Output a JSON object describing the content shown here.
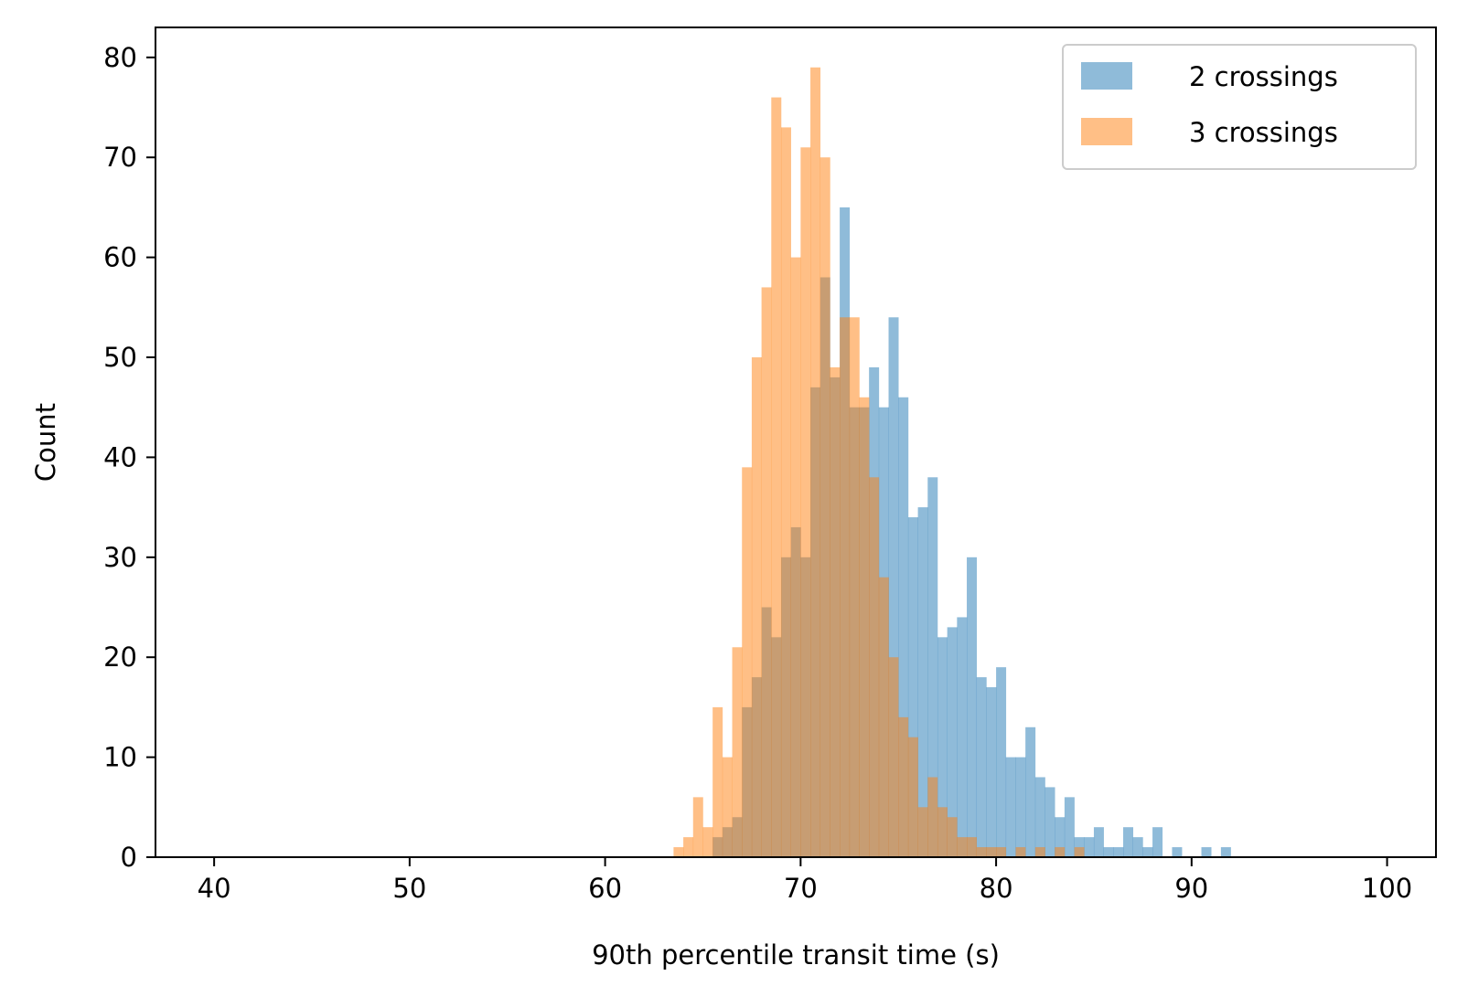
{
  "chart_data": {
    "type": "histogram",
    "xlabel": "90th percentile transit time (s)",
    "ylabel": "Count",
    "xlim": [
      37,
      102.5
    ],
    "ylim": [
      0,
      83
    ],
    "xticks": [
      40,
      50,
      60,
      70,
      80,
      90,
      100
    ],
    "yticks": [
      0,
      10,
      20,
      30,
      40,
      50,
      60,
      70,
      80
    ],
    "bin_width": 0.5,
    "legend_position": "top-right",
    "series": [
      {
        "name": "2 crossings",
        "color": "#1f77b4",
        "opacity": 0.5,
        "bins": [
          [
            65.5,
            2
          ],
          [
            66.0,
            3
          ],
          [
            66.5,
            4
          ],
          [
            67.0,
            15
          ],
          [
            67.5,
            18
          ],
          [
            68.0,
            25
          ],
          [
            68.5,
            22
          ],
          [
            69.0,
            30
          ],
          [
            69.5,
            33
          ],
          [
            70.0,
            30
          ],
          [
            70.5,
            47
          ],
          [
            71.0,
            58
          ],
          [
            71.5,
            48
          ],
          [
            72.0,
            65
          ],
          [
            72.5,
            45
          ],
          [
            73.0,
            45
          ],
          [
            73.5,
            49
          ],
          [
            74.0,
            45
          ],
          [
            74.5,
            54
          ],
          [
            75.0,
            46
          ],
          [
            75.5,
            34
          ],
          [
            76.0,
            35
          ],
          [
            76.5,
            38
          ],
          [
            77.0,
            22
          ],
          [
            77.5,
            23
          ],
          [
            78.0,
            24
          ],
          [
            78.5,
            30
          ],
          [
            79.0,
            18
          ],
          [
            79.5,
            17
          ],
          [
            80.0,
            19
          ],
          [
            80.5,
            10
          ],
          [
            81.0,
            10
          ],
          [
            81.5,
            13
          ],
          [
            82.0,
            8
          ],
          [
            82.5,
            7
          ],
          [
            83.0,
            4
          ],
          [
            83.5,
            6
          ],
          [
            84.0,
            2
          ],
          [
            84.5,
            2
          ],
          [
            85.0,
            3
          ],
          [
            85.5,
            1
          ],
          [
            86.0,
            1
          ],
          [
            86.5,
            3
          ],
          [
            87.0,
            2
          ],
          [
            87.5,
            1
          ],
          [
            88.0,
            3
          ],
          [
            89.0,
            1
          ],
          [
            90.5,
            1
          ],
          [
            91.5,
            1
          ]
        ]
      },
      {
        "name": "3 crossings",
        "color": "#ff7f0e",
        "opacity": 0.5,
        "bins": [
          [
            63.5,
            1
          ],
          [
            64.0,
            2
          ],
          [
            64.5,
            6
          ],
          [
            65.0,
            3
          ],
          [
            65.5,
            15
          ],
          [
            66.0,
            10
          ],
          [
            66.5,
            21
          ],
          [
            67.0,
            39
          ],
          [
            67.5,
            50
          ],
          [
            68.0,
            57
          ],
          [
            68.5,
            76
          ],
          [
            69.0,
            73
          ],
          [
            69.5,
            60
          ],
          [
            70.0,
            71
          ],
          [
            70.5,
            79
          ],
          [
            71.0,
            70
          ],
          [
            71.5,
            49
          ],
          [
            72.0,
            54
          ],
          [
            72.5,
            54
          ],
          [
            73.0,
            46
          ],
          [
            73.5,
            38
          ],
          [
            74.0,
            28
          ],
          [
            74.5,
            20
          ],
          [
            75.0,
            14
          ],
          [
            75.5,
            12
          ],
          [
            76.0,
            5
          ],
          [
            76.5,
            8
          ],
          [
            77.0,
            5
          ],
          [
            77.5,
            4
          ],
          [
            78.0,
            2
          ],
          [
            78.5,
            2
          ],
          [
            79.0,
            1
          ],
          [
            79.5,
            1
          ],
          [
            80.0,
            1
          ],
          [
            80.5,
            0
          ],
          [
            81.0,
            1
          ],
          [
            81.5,
            0
          ],
          [
            82.0,
            1
          ],
          [
            82.5,
            0
          ],
          [
            83.0,
            1
          ],
          [
            84.0,
            1
          ]
        ]
      }
    ]
  }
}
